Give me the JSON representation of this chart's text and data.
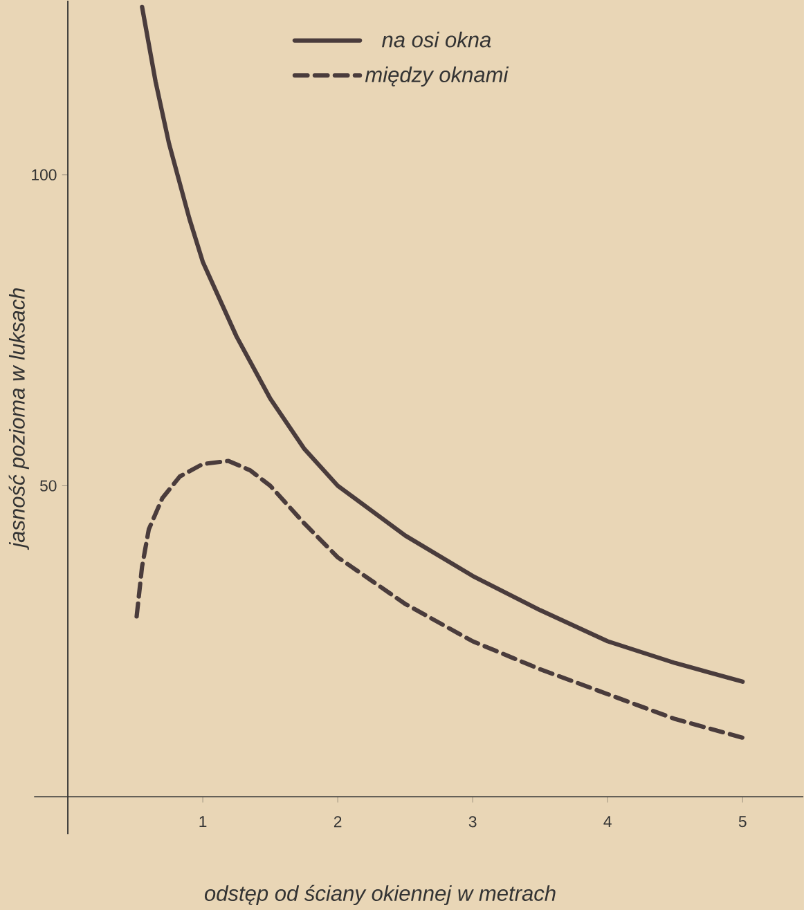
{
  "chart_data": {
    "type": "line",
    "xlabel": "odstęp od ściany okiennej w metrach",
    "ylabel": "jasność pozioma w luksach",
    "xlim": [
      -0.25,
      5.45
    ],
    "ylim": [
      -6,
      128
    ],
    "xticks": [
      1,
      2,
      3,
      4,
      5
    ],
    "yticks": [
      50,
      100
    ],
    "legend": "top",
    "series": [
      {
        "name": "na osi okna",
        "color": "#4a3c3c",
        "line_style": "solid",
        "x": [
          0.55,
          0.65,
          0.75,
          0.9,
          1.0,
          1.25,
          1.5,
          1.75,
          2.0,
          2.5,
          3.0,
          3.5,
          4.0,
          4.5,
          5.0
        ],
        "values": [
          127,
          115,
          105,
          93,
          86,
          74,
          64,
          56,
          50,
          42,
          35.5,
          30,
          25,
          21.5,
          18.5
        ]
      },
      {
        "name": "między oknami",
        "color": "#4a3c3c",
        "line_style": "dashed",
        "x": [
          0.51,
          0.55,
          0.6,
          0.7,
          0.83,
          1.0,
          1.19,
          1.35,
          1.5,
          1.75,
          2.0,
          2.5,
          3.0,
          3.5,
          4.0,
          4.5,
          5.0
        ],
        "values": [
          29,
          37,
          43,
          48,
          51.5,
          53.5,
          54,
          52.5,
          50,
          44,
          38.5,
          31,
          25,
          20.5,
          16.5,
          12.5,
          9.5
        ]
      }
    ]
  }
}
